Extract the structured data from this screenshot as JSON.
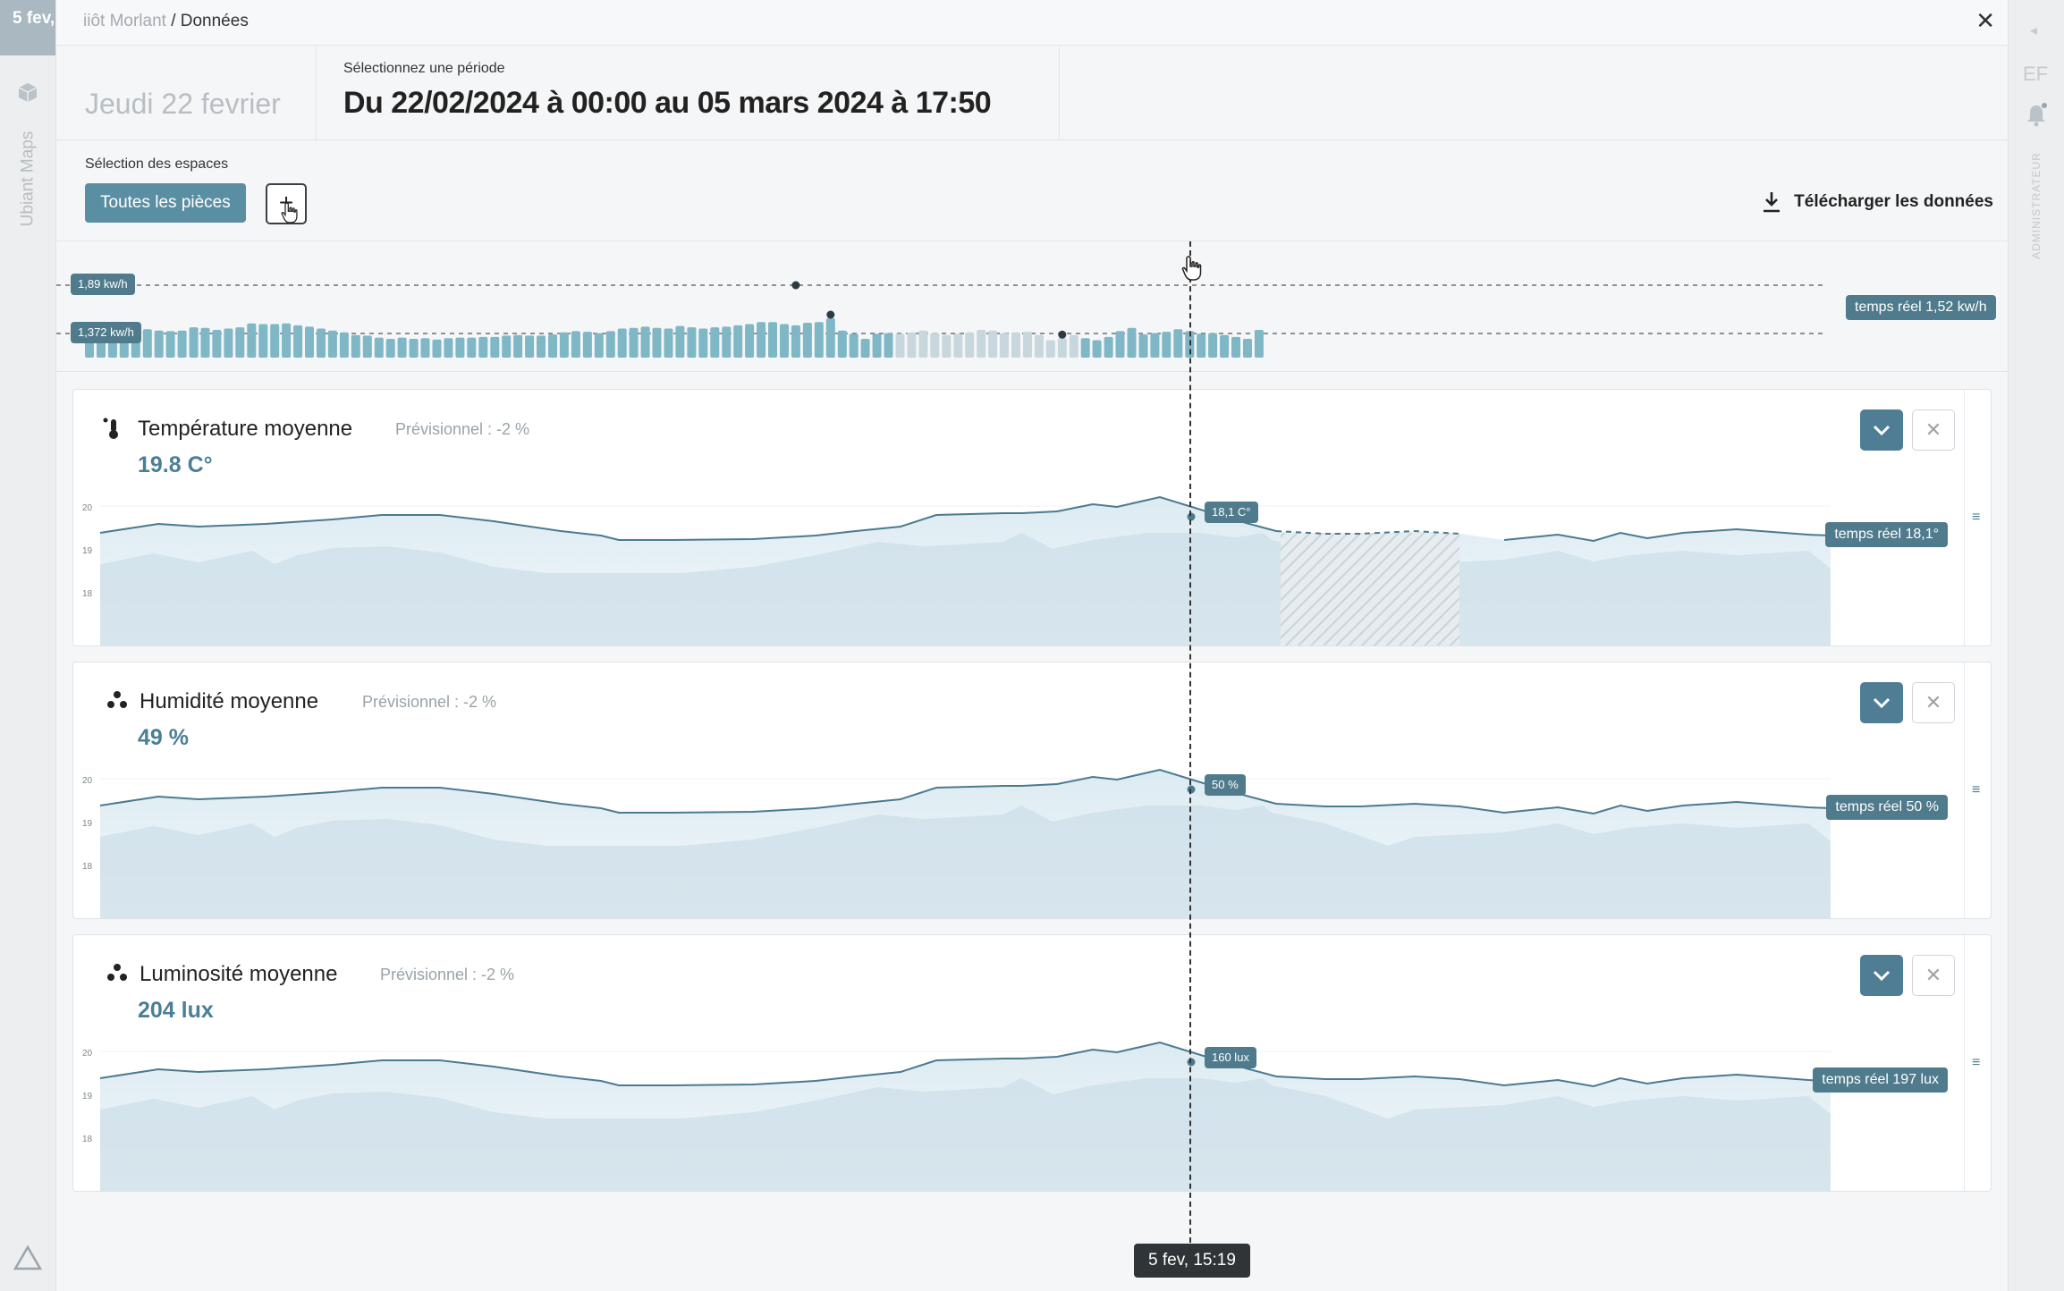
{
  "rail": {
    "top_text": "5 fev,",
    "vertical_label": "Ubiant Maps"
  },
  "right_rail": {
    "initials": "EF",
    "role": "ADMINISTRATEUR"
  },
  "breadcrumb": {
    "previous": "iiôt Morlant",
    "current": "/ Données"
  },
  "period": {
    "date_display": "Jeudi 22 fevrier",
    "label": "Sélectionnez une période",
    "value": "Du 22/02/2024 à 00:00 au 05 mars 2024 à 17:50"
  },
  "spaces": {
    "label": "Sélection des espaces",
    "selected": "Toutes les pièces",
    "add": "+",
    "download": "Télécharger les données"
  },
  "energy": {
    "max_label": "1,89 kw/h",
    "avg_label": "1,372 kw/h",
    "realtime_label": "temps réel 1,52 kw/h",
    "bars": [
      1.32,
      1.36,
      1.38,
      1.36,
      1.35,
      1.33,
      1.31,
      1.3,
      1.31,
      1.36,
      1.35,
      1.32,
      1.34,
      1.36,
      1.42,
      1.41,
      1.41,
      1.42,
      1.39,
      1.37,
      1.34,
      1.31,
      1.28,
      1.24,
      1.23,
      1.2,
      1.18,
      1.2,
      1.18,
      1.19,
      1.17,
      1.19,
      1.2,
      1.2,
      1.21,
      1.21,
      1.23,
      1.24,
      1.23,
      1.23,
      1.25,
      1.28,
      1.3,
      1.29,
      1.27,
      1.3,
      1.34,
      1.35,
      1.37,
      1.35,
      1.34,
      1.38,
      1.36,
      1.34,
      1.36,
      1.37,
      1.39,
      1.41,
      1.44,
      1.44,
      1.41,
      1.39,
      1.43,
      1.44,
      1.5,
      1.31,
      1.26,
      1.18,
      1.26,
      1.27,
      1.26,
      1.28,
      1.31,
      1.27,
      1.24,
      1.26,
      1.28,
      1.32,
      1.31,
      1.27,
      1.28,
      1.29,
      1.24,
      1.16,
      1.19,
      1.24,
      1.19,
      1.16,
      1.21,
      1.3,
      1.35,
      1.25,
      1.27,
      1.29,
      1.33,
      1.3,
      1.26,
      1.27,
      1.24,
      1.21,
      1.18,
      1.32
    ],
    "greyed_range": [
      70,
      85
    ],
    "dots": [
      {
        "index": 61,
        "value": 1.89
      },
      {
        "index": 64,
        "value": 1.33
      },
      {
        "index": 84,
        "value": 1.26
      }
    ]
  },
  "cards": [
    {
      "title": "Température moyenne",
      "forecast": "Prévisionnel : -2 %",
      "value": "19.8 C°",
      "cursor_label": "18,1 C°",
      "realtime_label": "temps réel 18,1°",
      "icon": "thermometer-icon",
      "yticks": [
        "20",
        "19",
        "18"
      ],
      "hatched": true
    },
    {
      "title": "Humidité moyenne",
      "forecast": "Prévisionnel : -2 %",
      "value": "49 %",
      "cursor_label": "50 %",
      "realtime_label": "temps réel 50 %",
      "icon": "droplets-icon",
      "yticks": [
        "20",
        "19",
        "18"
      ],
      "hatched": false
    },
    {
      "title": "Luminosité moyenne",
      "forecast": "Prévisionnel : -2 %",
      "value": "204 lux",
      "cursor_label": "160 lux",
      "realtime_label": "temps réel 197 lux",
      "icon": "droplets-icon",
      "yticks": [
        "20",
        "19",
        "18"
      ],
      "hatched": false
    }
  ],
  "cursor_time": "5 fev, 15:19",
  "colors": {
    "accent": "#5a8ea3",
    "bar": "#7fb7c6",
    "bar_grey": "#c8d7dd",
    "tag": "#4f7b8d",
    "line": "#4b7a90",
    "area_light": "#dcebf2",
    "area_dark": "#cddfe8"
  }
}
